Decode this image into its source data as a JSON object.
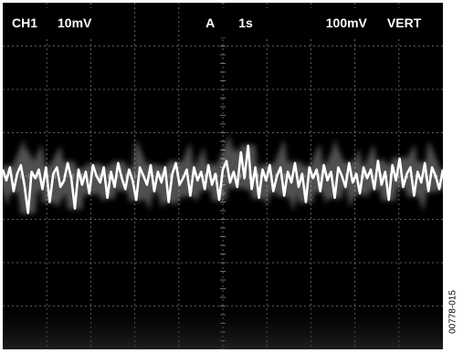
{
  "header": {
    "channel": "CH1",
    "channel_scale": "10mV",
    "acquire_mode": "A",
    "timebase": "1s",
    "trigger_level": "100mV",
    "trigger_source": "VERT"
  },
  "figure_id": "00778-015",
  "colors": {
    "screen": "#000000",
    "graticule": "#8a8a8a",
    "trace": "#ffffff",
    "glow": "#e6e6e6"
  },
  "chart_data": {
    "type": "line",
    "title": "",
    "xlabel": "",
    "ylabel": "",
    "grid": true,
    "x_divisions": 10,
    "y_divisions": 8,
    "xlim": [
      0,
      10
    ],
    "ylim": [
      -4,
      4
    ],
    "series": [
      {
        "values": [
          0.15,
          -0.1,
          0.2,
          -0.35,
          0.05,
          0.25,
          -0.2,
          -0.85,
          0.1,
          -0.05,
          0.15,
          -0.3,
          0.2,
          -0.6,
          0.05,
          0.2,
          -0.25,
          -0.1,
          0.3,
          -0.05,
          -0.75,
          0.15,
          -0.2,
          0.1,
          -0.4,
          0.25,
          0.0,
          -0.15,
          0.2,
          -0.5,
          0.1,
          -0.25,
          0.3,
          -0.05,
          -0.3,
          0.15,
          -0.1,
          -0.55,
          0.2,
          0.0,
          -0.2,
          0.25,
          -0.35,
          0.1,
          -0.15,
          0.2,
          -0.6,
          0.05,
          0.3,
          -0.2,
          -0.05,
          0.15,
          -0.45,
          0.2,
          -0.1,
          0.1,
          -0.3,
          0.25,
          -0.2,
          0.05,
          -0.55,
          0.15,
          0.35,
          -0.15,
          0.1,
          -0.25,
          0.55,
          -0.05,
          0.7,
          -0.3,
          0.2,
          -0.5,
          0.15,
          -0.1,
          0.25,
          -0.35,
          0.0,
          0.2,
          -0.45,
          0.1,
          -0.15,
          0.3,
          -0.25,
          0.05,
          -0.6,
          0.2,
          -0.05,
          0.15,
          -0.35,
          0.25,
          -0.1,
          0.1,
          -0.5,
          0.2,
          0.0,
          -0.25,
          0.3,
          -0.15,
          0.05,
          -0.4,
          0.2,
          -0.05,
          0.15,
          -0.3,
          0.35,
          -0.2,
          0.1,
          -0.55,
          0.25,
          -0.1,
          0.4,
          -0.25,
          0.05,
          0.2,
          -0.45,
          0.1,
          -0.15,
          0.3,
          -0.35,
          0.2,
          0.0,
          -0.3,
          0.15
        ]
      }
    ]
  }
}
